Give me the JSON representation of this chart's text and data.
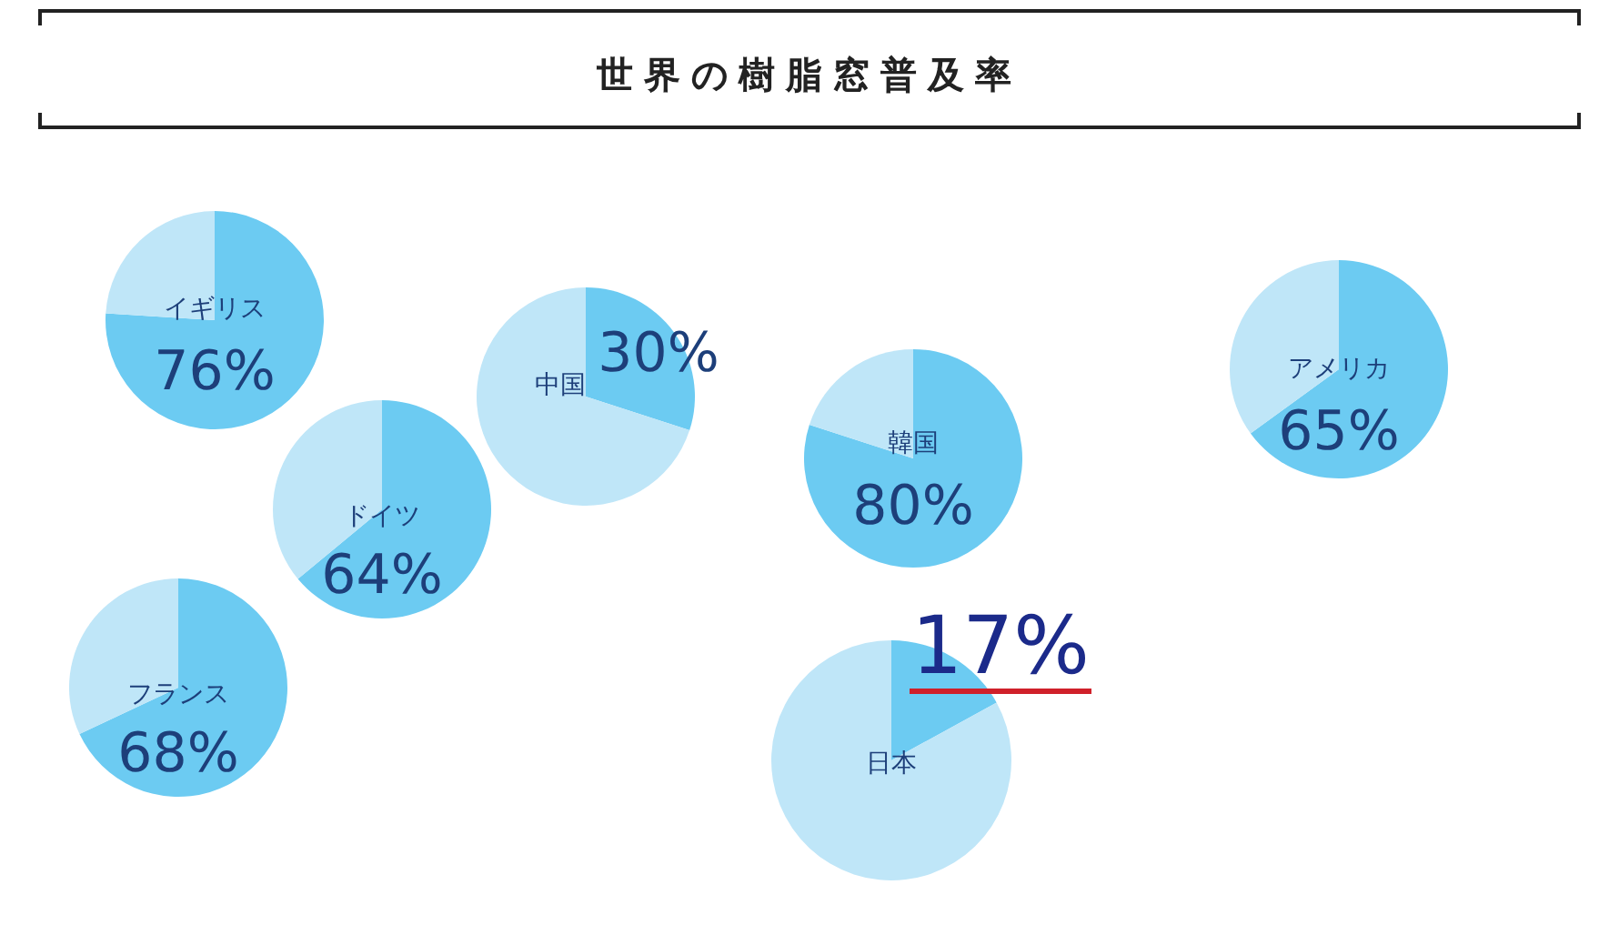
{
  "chart_data": [
    {
      "type": "other",
      "title": "世界の樹脂窓普及率"
    },
    {
      "type": "pie",
      "title": "イギリス",
      "categories": [
        null,
        null
      ],
      "values": [
        76,
        24
      ],
      "colors": [
        "#6ccbf2",
        "#bfe6f8"
      ],
      "value_labels": [
        "76%",
        null
      ]
    },
    {
      "type": "pie",
      "title": "ドイツ",
      "categories": [
        null,
        null
      ],
      "values": [
        64,
        36
      ],
      "colors": [
        "#6ccbf2",
        "#bfe6f8"
      ],
      "value_labels": [
        "64%",
        null
      ]
    },
    {
      "type": "pie",
      "title": "フランス",
      "categories": [
        null,
        null
      ],
      "values": [
        68,
        32
      ],
      "colors": [
        "#6ccbf2",
        "#bfe6f8"
      ],
      "value_labels": [
        "68%",
        null
      ]
    },
    {
      "type": "pie",
      "title": "中国",
      "categories": [
        null,
        null
      ],
      "values": [
        30,
        70
      ],
      "colors": [
        "#6ccbf2",
        "#bfe6f8"
      ],
      "value_labels": [
        "30%",
        null
      ]
    },
    {
      "type": "pie",
      "title": "韓国",
      "categories": [
        null,
        null
      ],
      "values": [
        80,
        20
      ],
      "colors": [
        "#6ccbf2",
        "#bfe6f8"
      ],
      "value_labels": [
        "80%",
        null
      ]
    },
    {
      "type": "pie",
      "title": "日本",
      "categories": [
        null,
        null
      ],
      "values": [
        17,
        83
      ],
      "colors": [
        "#6ccbf2",
        "#bfe6f8"
      ],
      "value_labels": [
        "17%",
        null
      ]
    },
    {
      "type": "pie",
      "title": "アメリカ",
      "categories": [
        null,
        null
      ],
      "values": [
        65,
        35
      ],
      "colors": [
        "#6ccbf2",
        "#bfe6f8"
      ],
      "value_labels": [
        "65%",
        null
      ]
    }
  ]
}
